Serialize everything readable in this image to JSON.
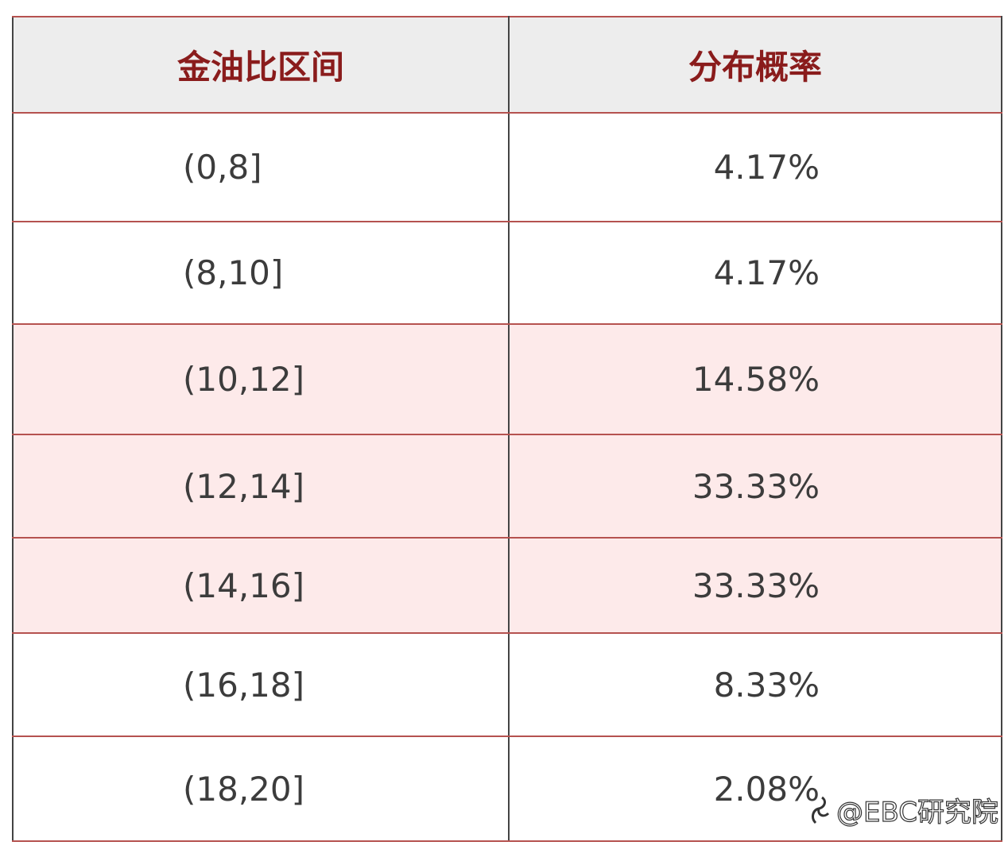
{
  "header": {
    "columns": [
      "金油比区间",
      "分布概率"
    ]
  },
  "table": {
    "rows": [
      [
        "(0,8]",
        "4.17%"
      ],
      [
        "(8,10]",
        "4.17%"
      ],
      [
        "(10,12]",
        "14.58%"
      ],
      [
        "(12,14]",
        "33.33%"
      ],
      [
        "(14,16]",
        "33.33%"
      ],
      [
        "(16,18]",
        "8.33%"
      ],
      [
        "(18,20]",
        "2.08%"
      ]
    ]
  },
  "watermark": "@EBC研究院"
}
